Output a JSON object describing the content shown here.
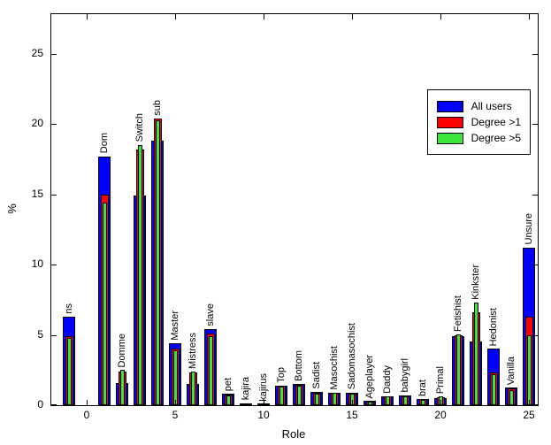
{
  "chart_data": {
    "type": "bar",
    "title": "",
    "xlabel": "Role",
    "ylabel": "%",
    "xlim": [
      -2,
      25.5
    ],
    "ylim": [
      0,
      27.8
    ],
    "x_ticks": [
      0,
      5,
      10,
      15,
      20,
      25
    ],
    "y_ticks": [
      0,
      5,
      10,
      15,
      20,
      25
    ],
    "grid": false,
    "legend_position": "top-right",
    "categories": [
      "ns",
      "Dom",
      "Domme",
      "Switch",
      "sub",
      "Master",
      "Mistress",
      "slave",
      "pet",
      "kajira",
      "kajirus",
      "Top",
      "Bottom",
      "Sadist",
      "Masochist",
      "Sadomasochist",
      "Ageplayer",
      "Daddy",
      "babygirl",
      "brat",
      "Primal",
      "Fetishist",
      "Kinkster",
      "Hedonist",
      "Vanilla",
      "Unsure"
    ],
    "x": [
      -1,
      1,
      2,
      3,
      4,
      5,
      6,
      7,
      8,
      9,
      10,
      11,
      12,
      13,
      14,
      15,
      16,
      17,
      18,
      19,
      20,
      21,
      22,
      23,
      24,
      25
    ],
    "series": [
      {
        "name": "All users",
        "color": "#0000ff",
        "values": [
          6.3,
          17.7,
          1.6,
          14.9,
          18.8,
          4.4,
          1.5,
          5.4,
          0.8,
          0.15,
          0.05,
          1.4,
          1.5,
          0.95,
          0.9,
          0.9,
          0.3,
          0.65,
          0.7,
          0.45,
          0.5,
          4.9,
          4.5,
          4.0,
          1.25,
          11.2
        ]
      },
      {
        "name": "Degree >1",
        "color": "#ff0000",
        "values": [
          4.9,
          15.0,
          2.4,
          18.2,
          20.4,
          4.05,
          2.3,
          5.1,
          0.75,
          0.12,
          0.05,
          1.4,
          1.45,
          0.9,
          0.9,
          0.85,
          0.27,
          0.62,
          0.65,
          0.42,
          0.55,
          5.0,
          6.6,
          2.3,
          1.2,
          6.3
        ]
      },
      {
        "name": "Degree >5",
        "color": "#39e639",
        "values": [
          4.8,
          14.4,
          2.5,
          18.5,
          20.25,
          3.9,
          2.4,
          4.9,
          0.7,
          0.1,
          0.05,
          1.35,
          1.4,
          0.85,
          0.9,
          0.85,
          0.25,
          0.6,
          0.6,
          0.4,
          0.6,
          5.05,
          7.3,
          2.2,
          1.1,
          5.0
        ]
      }
    ]
  }
}
